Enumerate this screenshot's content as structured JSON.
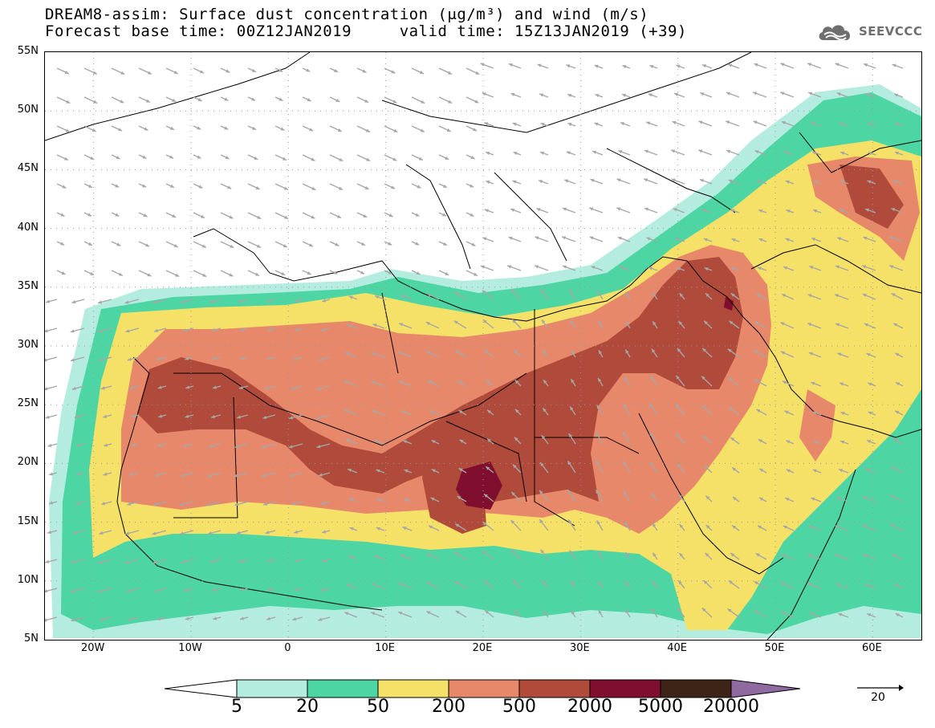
{
  "header": {
    "title_line1": "DREAM8-assim: Surface dust concentration (μg/m³) and wind (m/s)",
    "title_line2": "Forecast base time: 00Z12JAN2019     valid time: 15Z13JAN2019 (+39)"
  },
  "logo": {
    "text": "SEEVCCC",
    "icon": "cloud-icon"
  },
  "map": {
    "lat_labels": [
      "55N",
      "50N",
      "45N",
      "40N",
      "35N",
      "30N",
      "25N",
      "20N",
      "15N",
      "10N",
      "5N"
    ],
    "lon_labels": [
      "20W",
      "10W",
      "0",
      "10E",
      "20E",
      "30E",
      "40E",
      "50E",
      "60E"
    ],
    "extent": {
      "lon_min": -25,
      "lon_max": 65,
      "lat_min": 5,
      "lat_max": 55
    },
    "colors": {
      "c5": "#b4ede0",
      "c20": "#4dd6a4",
      "c50": "#f5e068",
      "c200": "#e8886a",
      "c500": "#b04a3a",
      "c2000": "#800e2e",
      "c5000": "#3e2416",
      "c20000": "#8e6aa0",
      "arrow": "#a6a6a6",
      "coast": "#000000"
    }
  },
  "colorbar": {
    "labels": [
      "5",
      "20",
      "50",
      "200",
      "500",
      "2000",
      "5000",
      "20000"
    ]
  },
  "reference_vector": {
    "label": "20"
  }
}
